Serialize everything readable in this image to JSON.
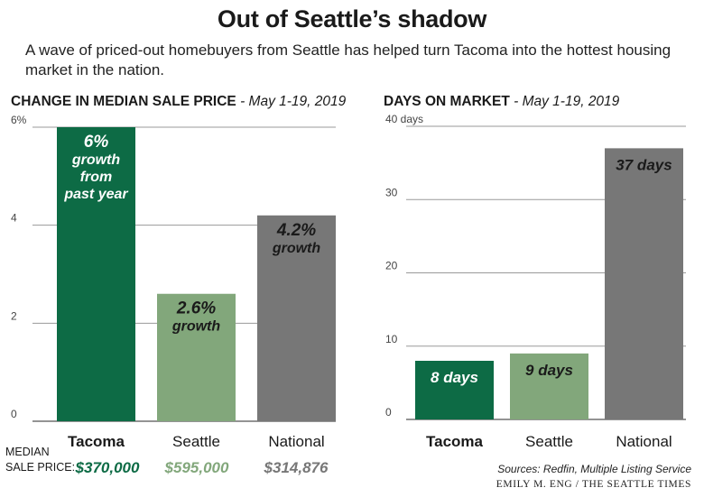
{
  "header": {
    "title": "Out of Seattle’s shadow",
    "subtitle": "A wave of priced-out homebuyers from Seattle has helped turn Tacoma into the hottest housing market in the nation."
  },
  "colors": {
    "tacoma": "#0d6b45",
    "seattle": "#82a77b",
    "national": "#777777",
    "grid": "#9a9a9a"
  },
  "median": {
    "label_line1": "MEDIAN",
    "label_line2": "SALE PRICE:",
    "tacoma": "$370,000",
    "seattle": "$595,000",
    "national": "$314,876"
  },
  "footer": {
    "sources": "Sources: Redfin, Multiple Listing Service",
    "credit": "EMILY M. ENG / THE SEATTLE TIMES"
  },
  "chart_data": [
    {
      "type": "bar",
      "title": "CHANGE IN MEDIAN SALE PRICE",
      "title_suffix": "- May 1-19, 2019",
      "categories": [
        "Tacoma",
        "Seattle",
        "National"
      ],
      "values": [
        6,
        2.6,
        4.2
      ],
      "ylim": [
        0,
        6
      ],
      "yticks": [
        "0",
        "2",
        "4",
        "6%"
      ],
      "grid": true,
      "bar_labels": [
        [
          "6%",
          "growth",
          "from",
          "past year"
        ],
        [
          "2.6%",
          "growth"
        ],
        [
          "4.2%",
          "growth"
        ]
      ]
    },
    {
      "type": "bar",
      "title": "DAYS ON MARKET",
      "title_suffix": "- May 1-19, 2019",
      "categories": [
        "Tacoma",
        "Seattle",
        "National"
      ],
      "values": [
        8,
        9,
        37
      ],
      "ylim": [
        0,
        40
      ],
      "yticks": [
        "0",
        "10",
        "20",
        "30",
        "40 days"
      ],
      "grid": true,
      "bar_labels": [
        [
          "8 days"
        ],
        [
          "9 days"
        ],
        [
          "37 days"
        ]
      ]
    }
  ]
}
